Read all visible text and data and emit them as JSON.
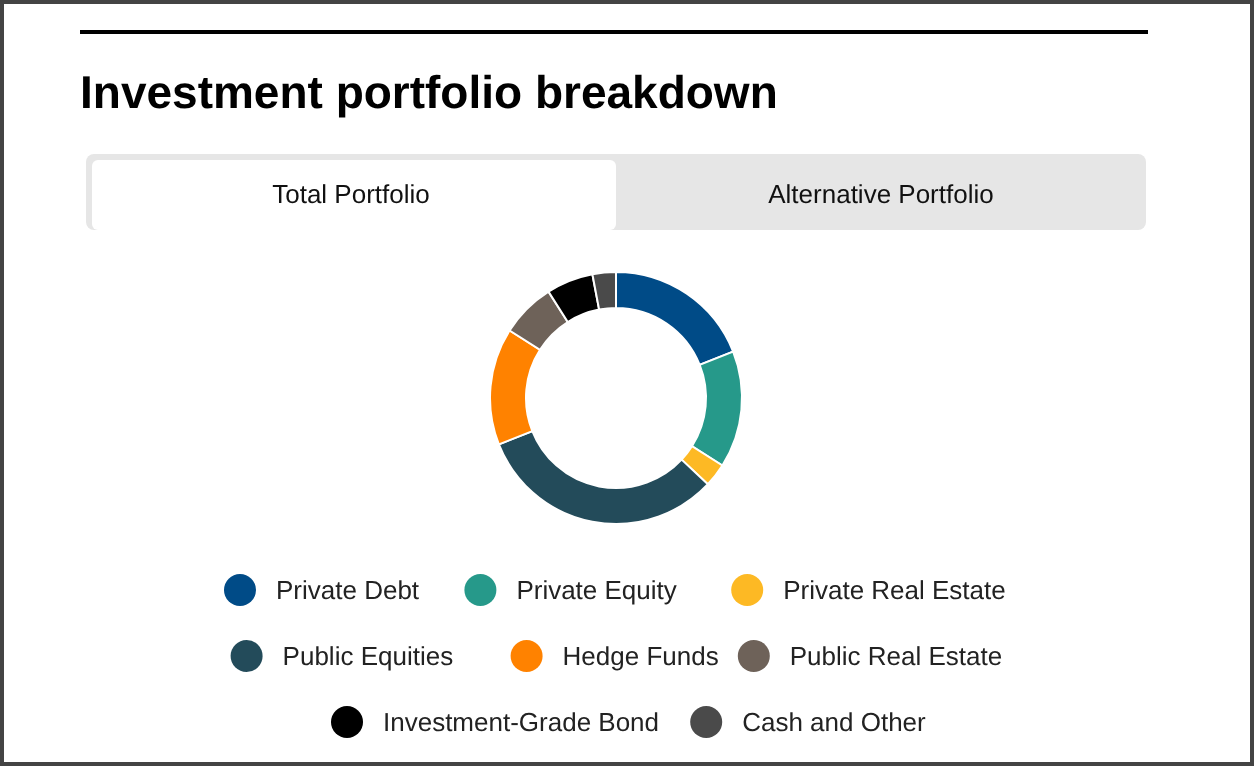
{
  "chart_data": {
    "type": "donut",
    "title": "Investment portfolio breakdown",
    "annotations": [
      "Total Portfolio",
      "Alternative Portfolio"
    ],
    "categories": [
      "Private Debt",
      "Private Equity",
      "Private Real Estate",
      "Public Equities",
      "Hedge Funds",
      "Public Real Estate",
      "Investment-Grade Bond",
      "Cash and Other"
    ],
    "values": [
      19,
      15,
      3,
      32,
      15,
      7,
      6,
      3
    ],
    "colors": [
      "#004b87",
      "#26998a",
      "#fdb924",
      "#234b5a",
      "#ff8200",
      "#6e6259",
      "#000000",
      "#4a4a4a"
    ],
    "legend": "bottom"
  }
}
